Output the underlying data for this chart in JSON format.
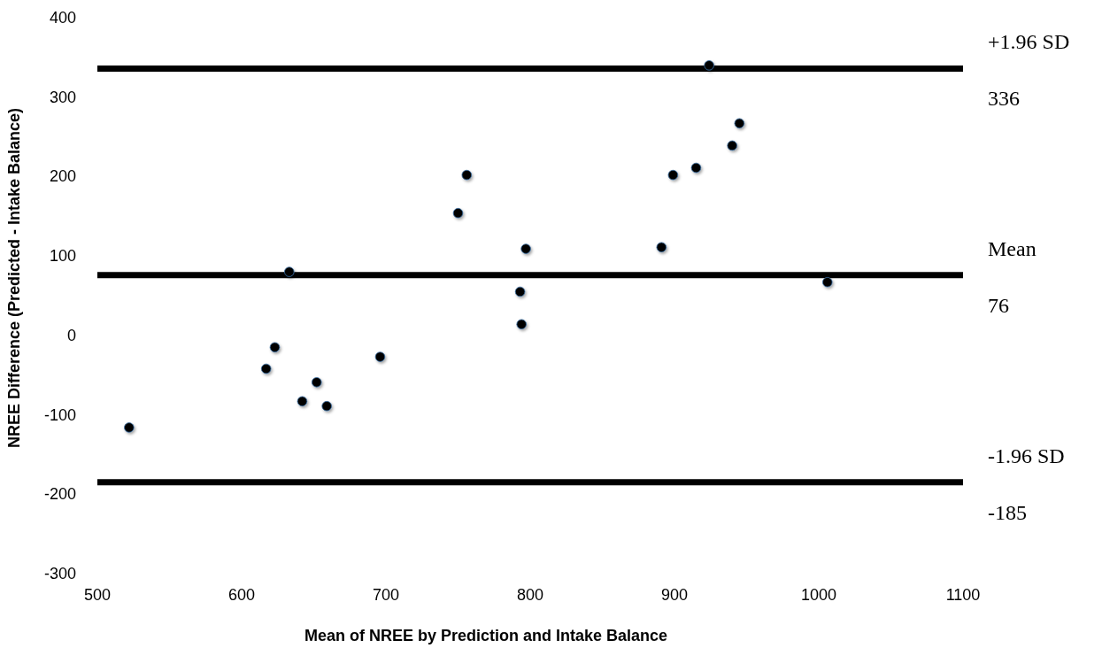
{
  "chart_data": {
    "type": "scatter",
    "xlabel": "Mean of NREE by Prediction and Intake Balance",
    "ylabel": "NREE Difference (Predicted - Intake Balance)",
    "x": [
      522,
      617,
      623,
      633,
      642,
      652,
      659,
      696,
      750,
      756,
      793,
      794,
      797,
      891,
      899,
      915,
      924,
      940,
      945,
      1006
    ],
    "values": [
      -116,
      -42,
      -15,
      80,
      -83,
      -59,
      -89,
      -27,
      154,
      202,
      55,
      14,
      109,
      111,
      202,
      211,
      340,
      239,
      267,
      67
    ],
    "color": "#000000",
    "marker": "circle",
    "xlim": [
      500,
      1100
    ],
    "xticks": [
      500,
      600,
      700,
      800,
      900,
      1000,
      1100
    ],
    "ylim": [
      -300,
      400
    ],
    "yticks": [
      -300,
      -200,
      -100,
      0,
      100,
      200,
      300,
      400
    ],
    "grid": false,
    "ref_lines": [
      {
        "axis": "y",
        "value": 336,
        "label": "+1.96 SD\n336",
        "color": "#000000"
      },
      {
        "axis": "y",
        "value": 76,
        "label": "Mean\n76",
        "color": "#000000"
      },
      {
        "axis": "y",
        "value": -185,
        "label": "-1.96 SD\n-185",
        "color": "#000000"
      }
    ]
  }
}
